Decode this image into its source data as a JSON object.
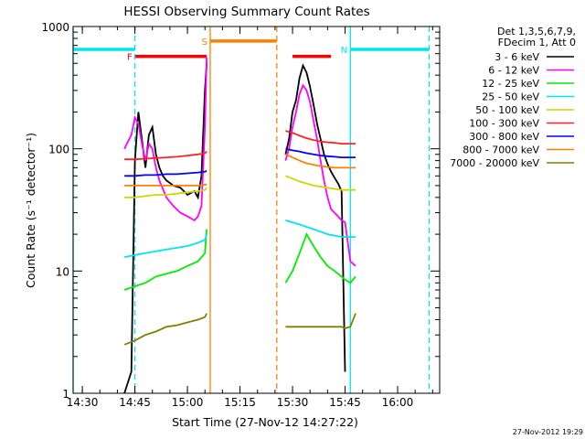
{
  "chart_data": {
    "type": "line",
    "title": "HESSI Observing Summary Count Rates",
    "xlabel": "Start Time (27-Nov-12 14:27:22)",
    "ylabel": "Count Rate (s⁻¹ detector⁻¹)",
    "y_scale": "log",
    "ylim": [
      1,
      1000
    ],
    "xlim": [
      "14:27:22",
      "16:12:00"
    ],
    "x_ticks": [
      "14:30",
      "14:45",
      "15:00",
      "15:15",
      "15:30",
      "15:45",
      "16:00"
    ],
    "y_ticks": [
      "1",
      "10",
      "100",
      "1000"
    ],
    "footer": "27-Nov-2012 19:29",
    "legend": {
      "position": "right",
      "header": [
        "Det 1,3,5,6,7,9,",
        "FDecim 1, Att 0"
      ],
      "entries": [
        {
          "label": "3 - 6 keV",
          "color": "#000000"
        },
        {
          "label": "6 - 12 keV",
          "color": "#ff00ff"
        },
        {
          "label": "12 - 25 keV",
          "color": "#00ee00"
        },
        {
          "label": "25 - 50 keV",
          "color": "#00e5ee"
        },
        {
          "label": "50 - 100 keV",
          "color": "#d4d400"
        },
        {
          "label": "100 - 300 keV",
          "color": "#ff2020"
        },
        {
          "label": "300 - 800 keV",
          "color": "#0000ff"
        },
        {
          "label": "800 - 7000 keV",
          "color": "#ff8000"
        },
        {
          "label": "7000 - 20000 keV",
          "color": "#808000"
        }
      ]
    },
    "flag_bars": [
      {
        "label": "",
        "color": "#00e5ee",
        "x0": "14:27:22",
        "x1": "14:45:00",
        "y": 650
      },
      {
        "label": "N",
        "color": "#00e5ee",
        "x0": "15:46:30",
        "x1": "16:09:00",
        "y": 650
      },
      {
        "label": "F",
        "color": "#ff0000",
        "x0": "14:45:00",
        "x1": "15:05:30",
        "y": 570
      },
      {
        "label": "",
        "color": "#ff0000",
        "x0": "15:30:00",
        "x1": "15:41:00",
        "y": 570
      },
      {
        "label": "S",
        "color": "#ff8000",
        "x0": "15:06:30",
        "x1": "15:25:30",
        "y": 760
      }
    ],
    "vertical_lines": [
      {
        "x": "14:45:00",
        "color": "#00e5ee",
        "style": "dashed"
      },
      {
        "x": "15:46:30",
        "color": "#00e5ee",
        "style": "solid"
      },
      {
        "x": "16:09:00",
        "color": "#00e5ee",
        "style": "dashed"
      },
      {
        "x": "14:27:22",
        "color": "#00e5ee",
        "style": "solid"
      },
      {
        "x": "15:06:30",
        "color": "#ff8000",
        "style": "solid"
      },
      {
        "x": "15:25:30",
        "color": "#ff8000",
        "style": "dashed"
      }
    ],
    "series": [
      {
        "name": "3 - 6 keV",
        "color": "#000000",
        "segments": [
          {
            "x": [
              "14:42:00",
              "14:44:00",
              "14:45:00",
              "14:46:00",
              "14:47:00",
              "14:48:00",
              "14:49:00",
              "14:50:00",
              "14:51:00",
              "14:52:00",
              "14:53:00",
              "14:54:00",
              "14:56:00",
              "14:58:00",
              "15:00:00",
              "15:02:00",
              "15:03:00",
              "15:04:00",
              "15:05:00",
              "15:05:30"
            ],
            "y": [
              1,
              1.5,
              80,
              200,
              120,
              70,
              130,
              150,
              90,
              70,
              60,
              55,
              50,
              48,
              42,
              45,
              40,
              60,
              300,
              500
            ]
          },
          {
            "x": [
              "15:28:00",
              "15:29:00",
              "15:30:00",
              "15:31:00",
              "15:32:00",
              "15:33:00",
              "15:34:00",
              "15:35:00",
              "15:36:00",
              "15:37:00",
              "15:38:00",
              "15:39:00",
              "15:40:00",
              "15:41:00",
              "15:42:00",
              "15:43:00",
              "15:44:00",
              "15:45:00"
            ],
            "y": [
              90,
              120,
              200,
              250,
              380,
              480,
              420,
              320,
              230,
              160,
              120,
              90,
              75,
              65,
              58,
              52,
              45,
              1.5
            ]
          }
        ]
      },
      {
        "name": "6 - 12 keV",
        "color": "#ff00ff",
        "segments": [
          {
            "x": [
              "14:42:00",
              "14:44:00",
              "14:45:00",
              "14:46:00",
              "14:47:00",
              "14:48:00",
              "14:49:00",
              "14:50:00",
              "14:51:00",
              "14:52:00",
              "14:54:00",
              "14:56:00",
              "14:58:00",
              "15:00:00",
              "15:02:00",
              "15:03:00",
              "15:04:00",
              "15:05:00",
              "15:05:30"
            ],
            "y": [
              100,
              130,
              180,
              160,
              110,
              80,
              110,
              100,
              70,
              55,
              40,
              34,
              30,
              28,
              26,
              28,
              34,
              150,
              560
            ]
          },
          {
            "x": [
              "15:28:00",
              "15:29:00",
              "15:30:00",
              "15:31:00",
              "15:32:00",
              "15:33:00",
              "15:34:00",
              "15:35:00",
              "15:36:00",
              "15:37:00",
              "15:38:00",
              "15:39:00",
              "15:40:00",
              "15:41:00",
              "15:42:00",
              "15:43:00",
              "15:44:00",
              "15:45:00",
              "15:46:30",
              "15:48:00"
            ],
            "y": [
              80,
              100,
              150,
              200,
              280,
              330,
              300,
              240,
              170,
              120,
              80,
              55,
              40,
              32,
              30,
              28,
              26,
              25,
              12,
              11
            ]
          }
        ]
      },
      {
        "name": "12 - 25 keV",
        "color": "#00ee00",
        "segments": [
          {
            "x": [
              "14:42:00",
              "14:45:00",
              "14:48:00",
              "14:51:00",
              "14:54:00",
              "14:57:00",
              "15:00:00",
              "15:03:00",
              "15:05:00",
              "15:05:30"
            ],
            "y": [
              7,
              7.5,
              8,
              9,
              9.5,
              10,
              11,
              12,
              14,
              22
            ]
          },
          {
            "x": [
              "15:28:00",
              "15:30:00",
              "15:32:00",
              "15:34:00",
              "15:36:00",
              "15:38:00",
              "15:40:00",
              "15:42:00",
              "15:44:00",
              "15:45:00",
              "15:46:30",
              "15:48:00"
            ],
            "y": [
              8,
              10,
              14,
              20,
              16,
              13,
              11,
              10,
              9,
              8.5,
              8,
              9
            ]
          }
        ]
      },
      {
        "name": "25 - 50 keV",
        "color": "#00e5ee",
        "segments": [
          {
            "x": [
              "14:42:00",
              "14:45:00",
              "14:48:00",
              "14:51:00",
              "14:54:00",
              "14:57:00",
              "15:00:00",
              "15:03:00",
              "15:05:00",
              "15:05:30"
            ],
            "y": [
              13,
              13.5,
              14,
              14.5,
              15,
              15.5,
              16,
              17,
              18,
              20
            ]
          },
          {
            "x": [
              "15:28:00",
              "15:30:00",
              "15:32:00",
              "15:34:00",
              "15:36:00",
              "15:38:00",
              "15:40:00",
              "15:42:00",
              "15:44:00",
              "15:45:00",
              "15:46:30",
              "15:48:00"
            ],
            "y": [
              26,
              25,
              24,
              23,
              22,
              21,
              20,
              19.5,
              19,
              19,
              19,
              19
            ]
          }
        ]
      },
      {
        "name": "50 - 100 keV",
        "color": "#d4d400",
        "segments": [
          {
            "x": [
              "14:42:00",
              "14:45:00",
              "14:48:00",
              "14:51:00",
              "14:54:00",
              "14:57:00",
              "15:00:00",
              "15:03:00",
              "15:05:00",
              "15:05:30"
            ],
            "y": [
              40,
              40,
              41,
              42,
              42,
              43,
              44,
              45,
              46,
              48
            ]
          },
          {
            "x": [
              "15:28:00",
              "15:30:00",
              "15:32:00",
              "15:34:00",
              "15:36:00",
              "15:38:00",
              "15:40:00",
              "15:42:00",
              "15:44:00",
              "15:45:00",
              "15:46:30",
              "15:48:00"
            ],
            "y": [
              60,
              57,
              54,
              52,
              50,
              49,
              48,
              47,
              46,
              46,
              46,
              46
            ]
          }
        ]
      },
      {
        "name": "100 - 300 keV",
        "color": "#ff2020",
        "segments": [
          {
            "x": [
              "14:42:00",
              "14:45:00",
              "14:48:00",
              "14:51:00",
              "14:54:00",
              "14:57:00",
              "15:00:00",
              "15:03:00",
              "15:05:00",
              "15:05:30"
            ],
            "y": [
              82,
              82,
              83,
              84,
              85,
              86,
              88,
              90,
              92,
              95
            ]
          },
          {
            "x": [
              "15:28:00",
              "15:30:00",
              "15:32:00",
              "15:34:00",
              "15:36:00",
              "15:38:00",
              "15:40:00",
              "15:42:00",
              "15:44:00",
              "15:45:00",
              "15:46:30",
              "15:48:00"
            ],
            "y": [
              140,
              135,
              128,
              122,
              118,
              115,
              113,
              112,
              110,
              110,
              110,
              110
            ]
          }
        ]
      },
      {
        "name": "300 - 800 keV",
        "color": "#0000ff",
        "segments": [
          {
            "x": [
              "14:42:00",
              "14:45:00",
              "14:48:00",
              "14:51:00",
              "14:54:00",
              "14:57:00",
              "15:00:00",
              "15:03:00",
              "15:05:00",
              "15:05:30"
            ],
            "y": [
              60,
              60,
              61,
              61,
              62,
              62,
              63,
              64,
              65,
              66
            ]
          },
          {
            "x": [
              "15:28:00",
              "15:30:00",
              "15:32:00",
              "15:34:00",
              "15:36:00",
              "15:38:00",
              "15:40:00",
              "15:42:00",
              "15:44:00",
              "15:45:00",
              "15:46:30",
              "15:48:00"
            ],
            "y": [
              100,
              97,
              95,
              92,
              90,
              88,
              87,
              86,
              85,
              85,
              85,
              85
            ]
          }
        ]
      },
      {
        "name": "800 - 7000 keV",
        "color": "#ff8000",
        "segments": [
          {
            "x": [
              "14:42:00",
              "14:45:00",
              "14:48:00",
              "14:51:00",
              "14:54:00",
              "14:57:00",
              "15:00:00",
              "15:03:00",
              "15:05:00",
              "15:05:30"
            ],
            "y": [
              50,
              50,
              50,
              50,
              50,
              50,
              50,
              50,
              51,
              51
            ]
          },
          {
            "x": [
              "15:28:00",
              "15:30:00",
              "15:32:00",
              "15:34:00",
              "15:36:00",
              "15:38:00",
              "15:40:00",
              "15:42:00",
              "15:44:00",
              "15:45:00",
              "15:46:30",
              "15:48:00"
            ],
            "y": [
              90,
              85,
              80,
              76,
              74,
              72,
              71,
              70,
              70,
              70,
              70,
              70
            ]
          }
        ]
      },
      {
        "name": "7000 - 20000 keV",
        "color": "#808000",
        "segments": [
          {
            "x": [
              "14:42:00",
              "14:45:00",
              "14:48:00",
              "14:51:00",
              "14:54:00",
              "14:57:00",
              "15:00:00",
              "15:03:00",
              "15:05:00",
              "15:05:30"
            ],
            "y": [
              2.5,
              2.7,
              3,
              3.2,
              3.5,
              3.6,
              3.8,
              4,
              4.2,
              4.5
            ]
          },
          {
            "x": [
              "15:28:00",
              "15:30:00",
              "15:32:00",
              "15:34:00",
              "15:36:00",
              "15:38:00",
              "15:40:00",
              "15:42:00",
              "15:44:00",
              "15:45:00",
              "15:46:30",
              "15:48:00"
            ],
            "y": [
              3.5,
              3.5,
              3.5,
              3.5,
              3.5,
              3.5,
              3.5,
              3.5,
              3.5,
              3.4,
              3.5,
              4.5
            ]
          }
        ]
      }
    ]
  }
}
